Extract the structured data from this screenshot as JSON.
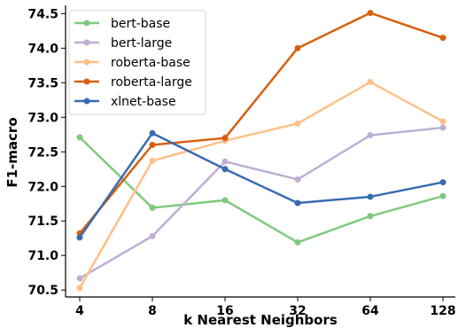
{
  "chart_data": {
    "type": "line",
    "title": "",
    "xlabel": "k Nearest Neighbors",
    "ylabel": "F1-macro",
    "x": [
      "4",
      "8",
      "16",
      "32",
      "64",
      "128"
    ],
    "ylim": [
      70.4,
      74.62
    ],
    "yticks": [
      "70.5",
      "71.0",
      "71.5",
      "72.0",
      "72.5",
      "73.0",
      "73.5",
      "74.0",
      "74.5"
    ],
    "grid": false,
    "legend_position": "top-left",
    "series": [
      {
        "name": "bert-base",
        "color": "#7fc97f",
        "values": [
          72.71,
          71.69,
          71.8,
          71.19,
          71.57,
          71.86
        ]
      },
      {
        "name": "bert-large",
        "color": "#beaed4",
        "values": [
          70.67,
          71.28,
          72.36,
          72.1,
          72.74,
          72.85
        ]
      },
      {
        "name": "roberta-base",
        "color": "#fdc086",
        "values": [
          70.53,
          72.37,
          72.66,
          72.91,
          73.51,
          72.94
        ]
      },
      {
        "name": "roberta-large",
        "color": "#d95f0e",
        "values": [
          71.32,
          72.6,
          72.7,
          74.0,
          74.51,
          74.15
        ]
      },
      {
        "name": "xlnet-base",
        "color": "#386cb0",
        "values": [
          71.26,
          72.77,
          72.25,
          71.76,
          71.85,
          72.06
        ]
      }
    ]
  }
}
